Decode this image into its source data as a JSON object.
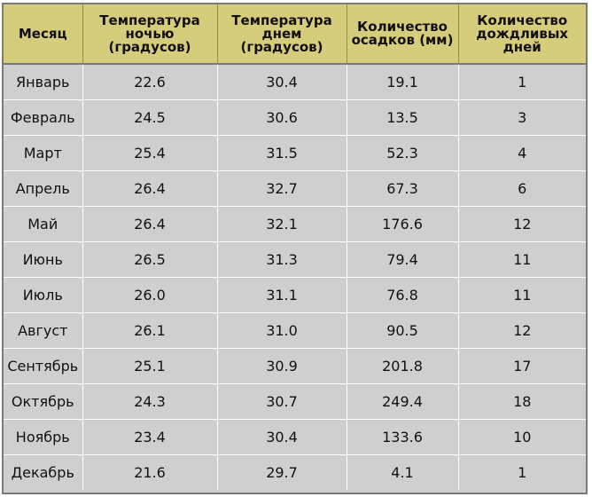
{
  "table": {
    "headers": [
      "Месяц",
      "Температура ночью (градусов)",
      "Температура днем (градусов)",
      "Количество осадков (мм)",
      "Количество дождливых дней"
    ],
    "rows": [
      [
        "Январь",
        "22.6",
        "30.4",
        "19.1",
        "1"
      ],
      [
        "Февраль",
        "24.5",
        "30.6",
        "13.5",
        "3"
      ],
      [
        "Март",
        "25.4",
        "31.5",
        "52.3",
        "4"
      ],
      [
        "Апрель",
        "26.4",
        "32.7",
        "67.3",
        "6"
      ],
      [
        "Май",
        "26.4",
        "32.1",
        "176.6",
        "12"
      ],
      [
        "Июнь",
        "26.5",
        "31.3",
        "79.4",
        "11"
      ],
      [
        "Июль",
        "26.0",
        "31.1",
        "76.8",
        "11"
      ],
      [
        "Август",
        "26.1",
        "31.0",
        "90.5",
        "12"
      ],
      [
        "Сентябрь",
        "25.1",
        "30.9",
        "201.8",
        "17"
      ],
      [
        "Октябрь",
        "24.3",
        "30.7",
        "249.4",
        "18"
      ],
      [
        "Ноябрь",
        "23.4",
        "30.4",
        "133.6",
        "10"
      ],
      [
        "Декабрь",
        "21.6",
        "29.7",
        "4.1",
        "1"
      ]
    ]
  }
}
